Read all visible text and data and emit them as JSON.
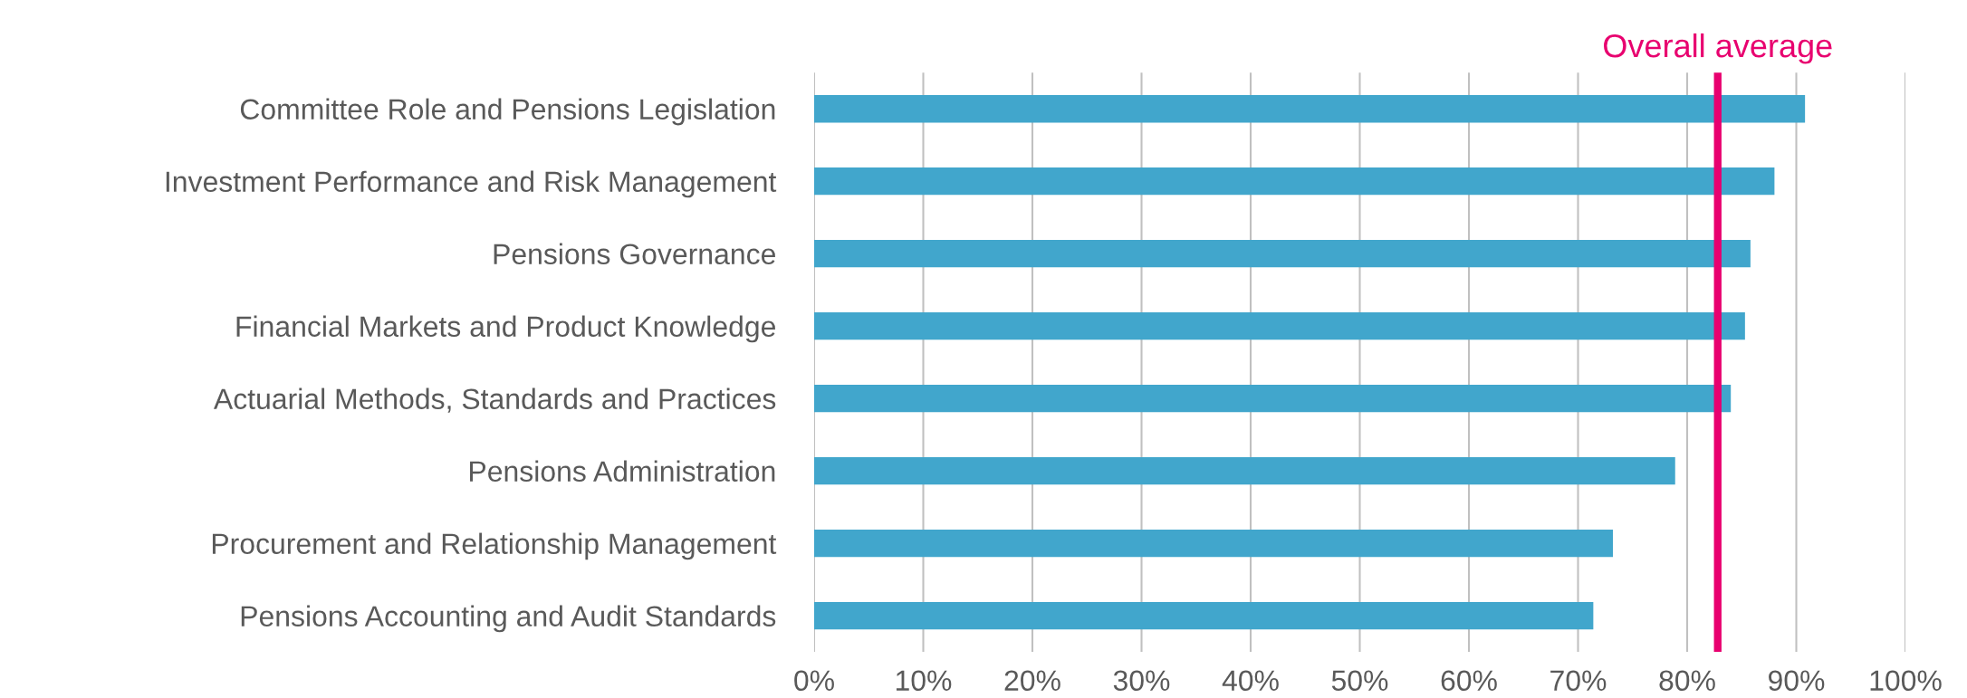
{
  "chart_data": {
    "type": "bar",
    "orientation": "horizontal",
    "categories": [
      "Committee Role and Pensions Legislation",
      "Investment Performance and Risk Management",
      "Pensions Governance",
      "Financial Markets and Product Knowledge",
      "Actuarial Methods, Standards and Practices",
      "Pensions Administration",
      "Procurement and Relationship Management",
      "Pensions Accounting and Audit Standards"
    ],
    "values": [
      90.8,
      88.0,
      85.8,
      85.3,
      84.0,
      78.9,
      73.2,
      71.4
    ],
    "color": "#41a6cc",
    "xlim": [
      0,
      100
    ],
    "xticks": [
      {
        "value": 0,
        "label": "0%"
      },
      {
        "value": 10,
        "label": "10%"
      },
      {
        "value": 20,
        "label": "20%"
      },
      {
        "value": 30,
        "label": "30%"
      },
      {
        "value": 40,
        "label": "40%"
      },
      {
        "value": 50,
        "label": "50%"
      },
      {
        "value": 60,
        "label": "60%"
      },
      {
        "value": 70,
        "label": "70%"
      },
      {
        "value": 80,
        "label": "80%"
      },
      {
        "value": 90,
        "label": "90%"
      },
      {
        "value": 100,
        "label": "100%"
      }
    ],
    "grid": "x",
    "ref_lines": [
      {
        "axis": "x",
        "value": 82.8,
        "label": "Overall average",
        "color": "#e8006f"
      }
    ]
  }
}
